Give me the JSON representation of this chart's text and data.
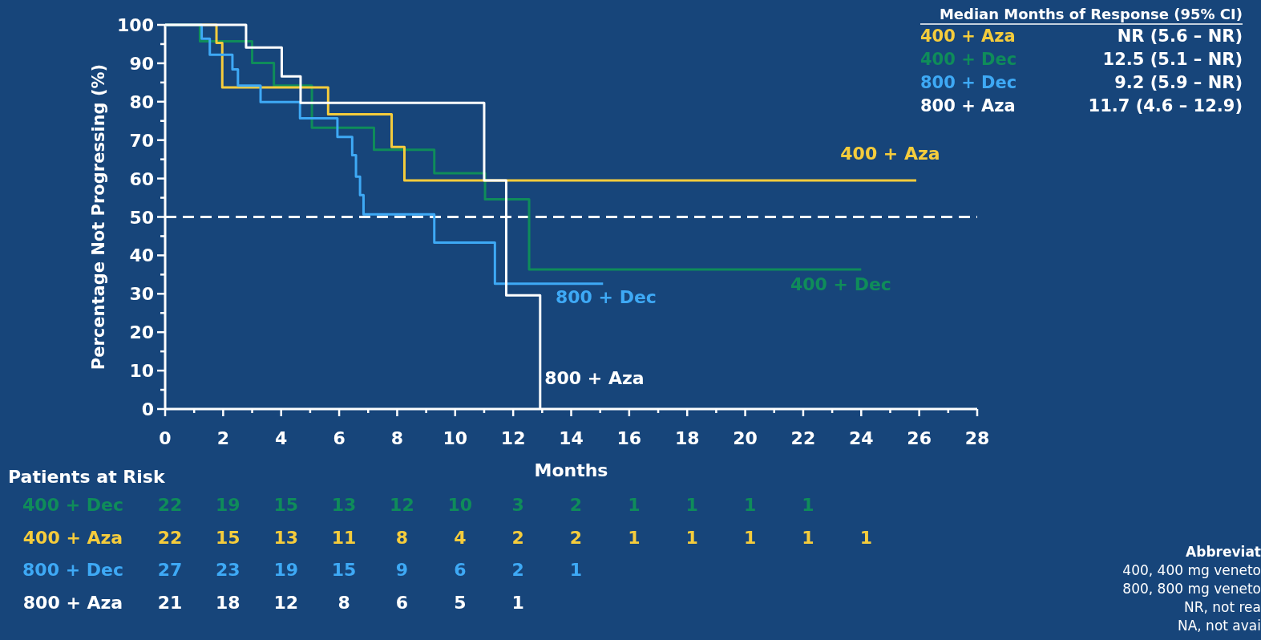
{
  "chart_data": {
    "type": "step",
    "xlabel": "Months",
    "ylabel": "Percentage Not Progressing (%)",
    "xlim": [
      0,
      28
    ],
    "ylim": [
      0,
      100
    ],
    "xticks": [
      0,
      {
        "value": 1,
        "label": null
      },
      2,
      {
        "value": 3,
        "label": null
      },
      4,
      {
        "value": 5,
        "label": null
      },
      6,
      {
        "value": 7,
        "label": null
      },
      8,
      {
        "value": 9,
        "label": null
      },
      10,
      {
        "value": 11,
        "label": null
      },
      12,
      {
        "value": 13,
        "label": null
      },
      14,
      {
        "value": 15,
        "label": null
      },
      16,
      {
        "value": 17,
        "label": null
      },
      18,
      {
        "value": 19,
        "label": null
      },
      20,
      {
        "value": 21,
        "label": null
      },
      22,
      {
        "value": 23,
        "label": null
      },
      24,
      {
        "value": 25,
        "label": null
      },
      26,
      {
        "value": 27,
        "label": null
      },
      28
    ],
    "yticks": [
      0,
      {
        "value": 5,
        "label": null
      },
      10,
      {
        "value": 15,
        "label": null
      },
      20,
      {
        "value": 25,
        "label": null
      },
      30,
      {
        "value": 35,
        "label": null
      },
      40,
      {
        "value": 45,
        "label": null
      },
      50,
      {
        "value": 55,
        "label": null
      },
      60,
      {
        "value": 65,
        "label": null
      },
      70,
      {
        "value": 75,
        "label": null
      },
      80,
      {
        "value": 85,
        "label": null
      },
      90,
      {
        "value": 95,
        "label": null
      },
      100
    ],
    "grid": false,
    "marker": "none",
    "line_style": "solid",
    "series": [
      {
        "name": "400 + Dec",
        "color": "#0f8c5a",
        "x": [
          0,
          1.2,
          3.0,
          3.75,
          5.06,
          7.2,
          9.28,
          11.03,
          12.55,
          24.0
        ],
        "values": [
          100,
          95.7,
          90.1,
          84.2,
          73.2,
          67.5,
          61.4,
          54.6,
          36.3,
          36.3
        ]
      },
      {
        "name": "400 + Aza",
        "color": "#f5cc3c",
        "x": [
          0,
          1.77,
          1.97,
          5.62,
          7.81,
          8.25,
          25.9
        ],
        "values": [
          100,
          95.3,
          83.7,
          76.7,
          68.2,
          59.5,
          59.5
        ]
      },
      {
        "name": "800 + Dec",
        "color": "#3ea9f5",
        "x": [
          0,
          1.26,
          1.54,
          2.32,
          2.51,
          3.29,
          4.65,
          5.94,
          6.45,
          6.58,
          6.72,
          6.84,
          9.28,
          11.37,
          15.1
        ],
        "values": [
          100,
          96.4,
          92.2,
          88.4,
          84.2,
          79.9,
          75.7,
          70.8,
          66.1,
          60.5,
          55.7,
          50.7,
          43.3,
          32.6,
          32.6
        ]
      },
      {
        "name": "800 + Aza",
        "color": "#ffffff",
        "x": [
          0,
          2.79,
          4.02,
          4.67,
          11.0,
          11.76,
          12.93
        ],
        "values": [
          100,
          94.1,
          86.6,
          79.7,
          59.5,
          29.6,
          0
        ]
      }
    ],
    "ref_lines": [
      {
        "axis": "y",
        "value": 50,
        "line_style": "dashed",
        "color": "#ffffff"
      }
    ],
    "annotations": [
      "Median Months of Response (95% CI)",
      "12.5 (5.1 – NR)",
      "NR (5.6 – NR)",
      "9.2 (5.9 – NR)",
      "11.7 (4.6 – 12.9)",
      "Patients at Risk",
      "22 19 15 13 12 10 3 2 1 1 1 1",
      "22 15 13 11 8 4 2 2 1 1 1 1 1",
      "27 23 19 15 9 6 2 1",
      "21 18 12 8 6 5 1",
      "Abbreviat",
      "400, 400 mg veneto",
      "800, 800 mg veneto",
      "NR, not rea",
      "NA, not avai"
    ]
  }
}
